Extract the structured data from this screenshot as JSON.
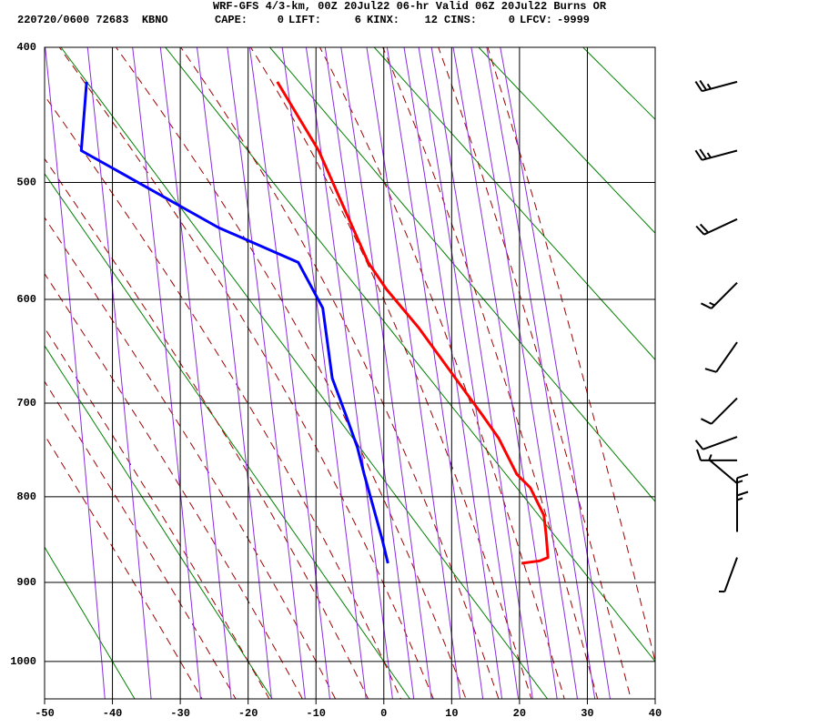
{
  "chart_data": {
    "type": "skewt",
    "title": "WRF-GFS 4/3-km, 00Z 20Jul22 06-hr Valid 06Z 20Jul22 Burns OR",
    "subtitle": "220720/0600 72683  KBNO",
    "indices": [
      {
        "label": "CAPE:",
        "value": 0
      },
      {
        "label": "LIFT:",
        "value": 6
      },
      {
        "label": "KINX:",
        "value": 12
      },
      {
        "label": "CINS:",
        "value": 0
      },
      {
        "label": "LFCV:",
        "value": -9999
      }
    ],
    "xlim": [
      -50,
      40
    ],
    "xticks": [
      -50,
      -40,
      -30,
      -20,
      -10,
      0,
      10,
      20,
      30,
      40
    ],
    "ylim": [
      400,
      1050
    ],
    "yticks": [
      400,
      500,
      600,
      700,
      800,
      900,
      1000
    ],
    "grid": true,
    "series": [
      {
        "color": "#ff0000",
        "pressure": [
          424,
          475,
          567,
          591,
          626,
          712,
          736,
          775,
          790,
          821,
          842,
          870,
          874,
          877
        ],
        "values": [
          -15.7,
          -9.6,
          -2.3,
          0.4,
          5.1,
          14.5,
          16.9,
          19.6,
          21.6,
          23.6,
          23.9,
          24.2,
          23.0,
          20.3
        ]
      },
      {
        "color": "#0000ff",
        "pressure": [
          424,
          475,
          537,
          567,
          608,
          675,
          712,
          746,
          775,
          810,
          850,
          877
        ],
        "values": [
          -43.8,
          -44.6,
          -24.4,
          -12.6,
          -9.0,
          -7.6,
          -5.6,
          -3.9,
          -2.9,
          -1.6,
          -0.2,
          0.6
        ]
      }
    ],
    "winds": {
      "pressure": [
        424,
        475,
        530,
        585,
        640,
        695,
        735,
        760,
        785,
        820,
        840,
        870
      ],
      "direction": [
        255,
        255,
        245,
        225,
        215,
        225,
        250,
        270,
        310,
        360,
        360,
        200
      ],
      "speed": [
        25,
        25,
        20,
        15,
        10,
        10,
        10,
        10,
        5,
        15,
        15,
        5
      ]
    }
  }
}
